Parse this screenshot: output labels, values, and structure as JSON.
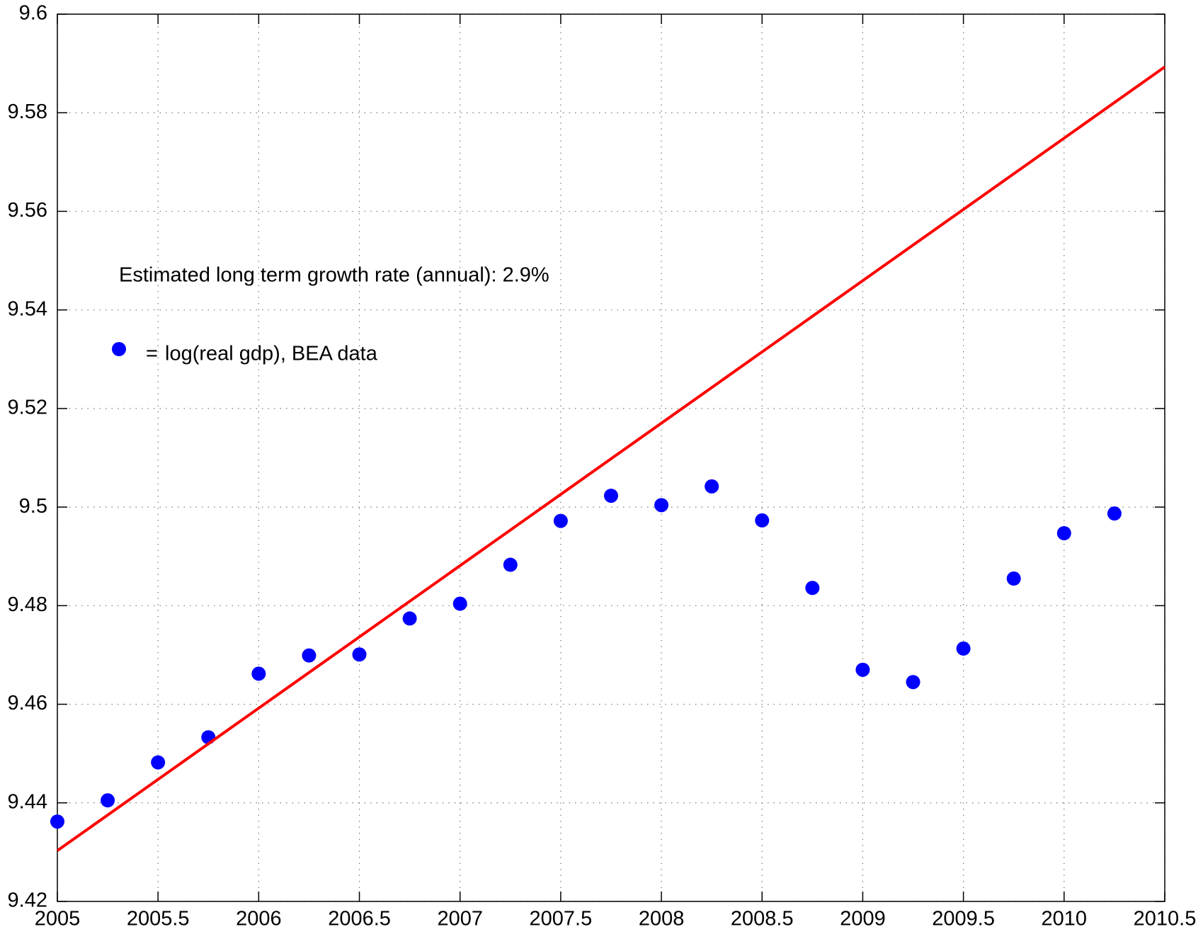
{
  "chart_data": {
    "type": "scatter",
    "annotations": [
      "Estimated long term growth rate (annual): 2.9%"
    ],
    "legend_separator": "=",
    "series": [
      {
        "name": "log(real gdp), BEA data",
        "style": "points",
        "color": "#0000ff",
        "x": [
          2005,
          2005.25,
          2005.5,
          2005.75,
          2006,
          2006.25,
          2006.5,
          2006.75,
          2007,
          2007.25,
          2007.5,
          2007.75,
          2008,
          2008.25,
          2008.5,
          2008.75,
          2009,
          2009.25,
          2009.5,
          2009.75,
          2010,
          2010.25
        ],
        "values": [
          9.4362,
          9.4405,
          9.4482,
          9.4533,
          9.4662,
          9.4699,
          9.4701,
          9.4774,
          9.4804,
          9.4883,
          9.4972,
          9.5023,
          9.5004,
          9.5042,
          9.4973,
          9.4836,
          9.467,
          9.4645,
          9.4713,
          9.4855,
          9.4947,
          9.4987
        ]
      },
      {
        "style": "line",
        "color": "#ff0000",
        "x": [
          2005,
          2010.5
        ],
        "values": [
          9.4303,
          9.5893
        ]
      }
    ],
    "xlim": [
      2005,
      2010.5
    ],
    "ylim": [
      9.42,
      9.6
    ],
    "xticks": [
      2005,
      2005.5,
      2006,
      2006.5,
      2007,
      2007.5,
      2008,
      2008.5,
      2009,
      2009.5,
      2010,
      2010.5
    ],
    "yticks": [
      9.42,
      9.44,
      9.46,
      9.48,
      9.5,
      9.52,
      9.54,
      9.56,
      9.58,
      9.6
    ],
    "grid": true
  }
}
